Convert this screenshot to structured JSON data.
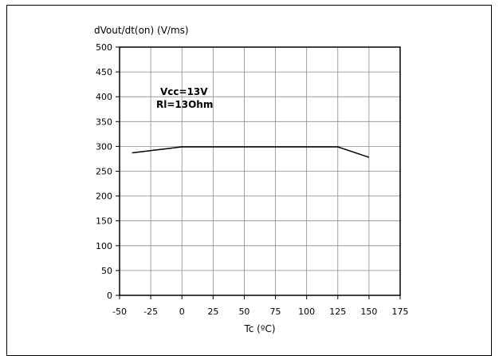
{
  "chart_data": {
    "type": "line",
    "title": "",
    "ylabel": "dVout/dt(on) (V/ms)",
    "xlabel": "Tc (ºC)",
    "xlim": [
      -50,
      175
    ],
    "ylim": [
      0,
      500
    ],
    "x_ticks": [
      -50,
      -25,
      0,
      25,
      50,
      75,
      100,
      125,
      150,
      175
    ],
    "y_ticks": [
      0,
      50,
      100,
      150,
      200,
      250,
      300,
      350,
      400,
      450,
      500
    ],
    "grid": true,
    "annotations": [
      "Vcc=13V",
      "Rl=13Ohm"
    ],
    "series": [
      {
        "x": [
          -40,
          0,
          125,
          150
        ],
        "y": [
          287,
          299,
          299,
          278
        ]
      }
    ]
  }
}
